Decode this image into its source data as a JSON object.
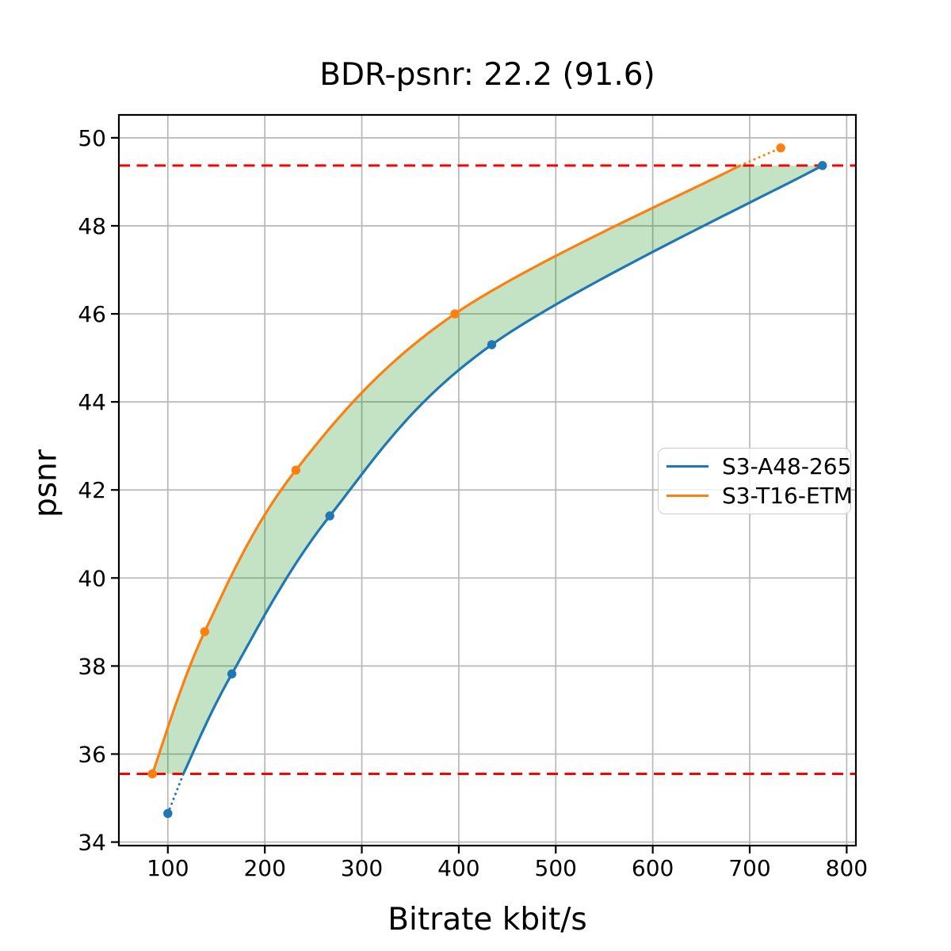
{
  "chart_data": {
    "type": "line",
    "title": "BDR-psnr: 22.2 (91.6)",
    "xlabel": "Bitrate kbit/s",
    "ylabel": "psnr",
    "xlim": [
      49.5,
      809.5
    ],
    "ylim": [
      33.92,
      50.52
    ],
    "xticks": [
      100,
      200,
      300,
      400,
      500,
      600,
      700,
      800
    ],
    "yticks": [
      34,
      36,
      38,
      40,
      42,
      44,
      46,
      48,
      50
    ],
    "grid": true,
    "grid_color": "#b8b8b8",
    "legend_position": "center right",
    "series": [
      {
        "name": "S3-A48-265",
        "color": "#1f77b4",
        "points": [
          [
            100,
            34.65
          ],
          [
            166,
            37.82
          ],
          [
            267,
            41.41
          ],
          [
            434,
            45.3
          ],
          [
            775,
            49.37
          ]
        ],
        "solid": [
          [
            116,
            35.55
          ],
          [
            166,
            37.82
          ],
          [
            267,
            41.41
          ],
          [
            434,
            45.3
          ],
          [
            775,
            49.37
          ]
        ],
        "dotted": [
          [
            100,
            34.65
          ],
          [
            116,
            35.55
          ]
        ]
      },
      {
        "name": "S3-T16-ETM",
        "color": "#ff7f0e",
        "points": [
          [
            84,
            35.55
          ],
          [
            138,
            38.78
          ],
          [
            232,
            42.45
          ],
          [
            396,
            46.0
          ],
          [
            732,
            49.77
          ]
        ],
        "solid": [
          [
            84,
            35.55
          ],
          [
            138,
            38.78
          ],
          [
            232,
            42.45
          ],
          [
            396,
            46.0
          ],
          [
            690,
            49.37
          ]
        ],
        "dotted": [
          [
            690,
            49.37
          ],
          [
            732,
            49.77
          ]
        ]
      }
    ],
    "hlines": {
      "values": [
        49.37,
        35.55
      ],
      "color": "#ff0000",
      "style": "dashed"
    },
    "fill_between": {
      "color_rgba": "rgba(0,128,0,0.23)",
      "base_color": "#008000",
      "psnr_range": [
        35.55,
        49.37
      ]
    }
  }
}
